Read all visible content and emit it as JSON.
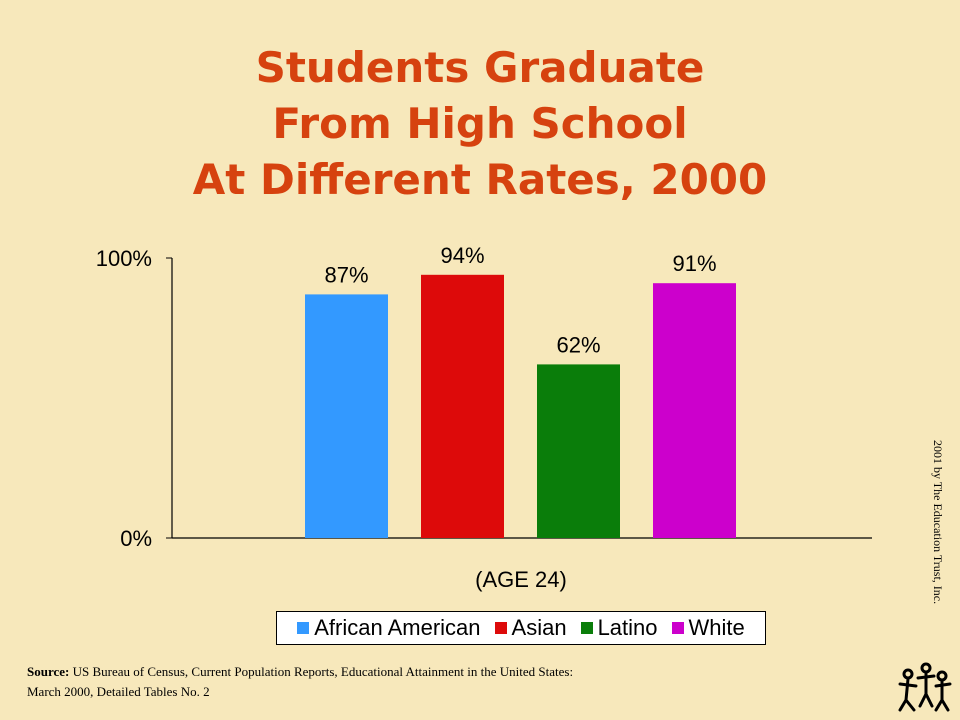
{
  "title_lines": [
    "Students Graduate",
    "From High School",
    "At Different Rates, 2000"
  ],
  "chart_data": {
    "type": "bar",
    "categories": [
      "African American",
      "Asian",
      "Latino",
      "White"
    ],
    "values": [
      87,
      94,
      62,
      91
    ],
    "data_labels": [
      "87%",
      "94%",
      "62%",
      "91%"
    ],
    "colors": [
      "#3399ff",
      "#dd0a0a",
      "#0a7d0a",
      "#cc00cc"
    ],
    "xlabel": "(AGE 24)",
    "ylabel": "",
    "ylim": [
      0,
      100
    ],
    "yticks": [
      "0%",
      "100%"
    ],
    "grid": false,
    "legend_position": "bottom"
  },
  "source": {
    "label": "Source:",
    "line1": "US Bureau of Census, Current Population Reports, Educational Attainment in the United States:",
    "line2": "March 2000,  Detailed Tables No. 2"
  },
  "copyright": "2001 by The Education Trust, Inc.",
  "logo_icon": "education-trust-logo-icon"
}
